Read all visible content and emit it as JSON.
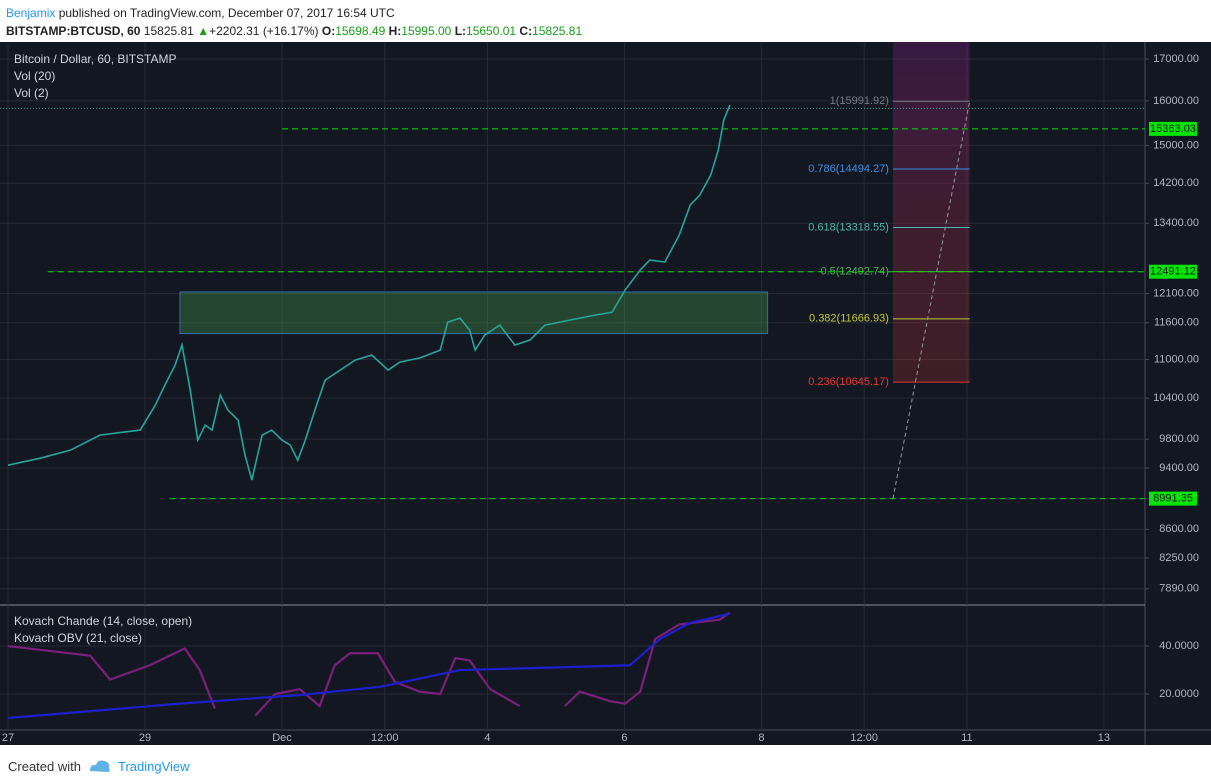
{
  "header": {
    "author": "Benjamix",
    "published": "published on TradingView.com, December 07, 2017 16:54 UTC",
    "symbol": "BITSTAMP:BTCUSD, 60",
    "price": "15825.81",
    "arrow": "▲",
    "change": "+2202.31 (+16.17%)",
    "o_label": "O:",
    "open": "15698.49",
    "h_label": "H:",
    "high": "15995.00",
    "l_label": "L:",
    "low": "15650.01",
    "c_label": "C:",
    "close": 15825.81
  },
  "chart_data": [
    {
      "type": "line",
      "title": "Bitcoin / Dollar, 60, BITSTAMP",
      "studies": [
        "Vol (20)",
        "Vol (2)"
      ],
      "x": [
        0,
        0.47,
        0.91,
        1.34,
        1.93,
        2.15,
        2.29,
        2.44,
        2.54,
        2.66,
        2.77,
        2.88,
        2.98,
        3.1,
        3.21,
        3.36,
        3.46,
        3.56,
        3.71,
        3.85,
        4,
        4.12,
        4.23,
        4.34,
        4.48,
        4.63,
        4.85,
        5.07,
        5.31,
        5.55,
        5.72,
        6.01,
        6.31,
        6.42,
        6.6,
        6.74,
        6.82,
        6.96,
        7.18,
        7.4,
        7.62,
        7.84,
        8.2,
        8.57,
        8.82,
        9.01,
        9.23,
        9.37,
        9.59,
        9.8,
        9.96,
        10.1,
        10.26,
        10.37,
        10.45,
        10.54
      ],
      "values": [
        9438,
        9534,
        9645,
        9858,
        9930,
        10295,
        10598,
        10911,
        11232,
        10523,
        9787,
        10003,
        9930,
        10447,
        10222,
        10074,
        9576,
        9236,
        9858,
        9930,
        9787,
        9717,
        9506,
        9787,
        10222,
        10676,
        10832,
        10990,
        11070,
        10832,
        10958,
        11023,
        11150,
        11611,
        11679,
        11478,
        11150,
        11395,
        11562,
        11232,
        11314,
        11562,
        11645,
        11730,
        11781,
        12164,
        12521,
        12704,
        12667,
        13172,
        13758,
        13959,
        14370,
        14899,
        15562,
        15904
      ],
      "color": "#26a69a",
      "log_scale": true,
      "grid": true,
      "xlim": [
        -0.117,
        16.6
      ],
      "xticks": [
        {
          "value": 0,
          "label": "27"
        },
        {
          "value": 2,
          "label": "29"
        },
        {
          "value": 4,
          "label": "Dec"
        },
        {
          "value": 5.5,
          "label": "12:00"
        },
        {
          "value": 7,
          "label": "4"
        },
        {
          "value": 9,
          "label": "6"
        },
        {
          "value": 11,
          "label": "8"
        },
        {
          "value": 12.5,
          "label": "12:00"
        },
        {
          "value": 14,
          "label": "11"
        },
        {
          "value": 16,
          "label": "13"
        }
      ],
      "ylim": [
        7707,
        17424
      ],
      "yticks": [
        {
          "value": 17000,
          "label": "17000.00"
        },
        {
          "value": 16000,
          "label": "16000.00"
        },
        {
          "value": 15000,
          "label": "15000.00"
        },
        {
          "value": 14200,
          "label": "14200.00"
        },
        {
          "value": 13400,
          "label": "13400.00"
        },
        {
          "value": 12100,
          "label": "12100.00"
        },
        {
          "value": 11600,
          "label": "11600.00"
        },
        {
          "value": 11000,
          "label": "11000.00"
        },
        {
          "value": 10400,
          "label": "10400.00"
        },
        {
          "value": 9800,
          "label": "9800.00"
        },
        {
          "value": 9400,
          "label": "9400.00"
        },
        {
          "value": 8600,
          "label": "8600.00"
        },
        {
          "value": 8250,
          "label": "8250.00"
        },
        {
          "value": 7890,
          "label": "7890.00"
        }
      ],
      "levels": [
        {
          "value": 15363.03,
          "start": 4
        },
        {
          "value": 12491.12,
          "start": 0.58
        },
        {
          "value": 8991.35,
          "start": 2.36
        }
      ],
      "level_color": "#00e600",
      "zone": {
        "top": 12130,
        "bottom": 11420,
        "x": [
          2.51,
          11.09
        ],
        "color": "#4caf50"
      },
      "fib_range": [
        12.92,
        14.04
      ],
      "fib_levels": [
        {
          "value": 15991.92,
          "label": "1(15991.92)",
          "color": "#787b86"
        },
        {
          "value": 14494.27,
          "label": "0.786(14494.27)",
          "color": "#3d8fe0"
        },
        {
          "value": 13318.55,
          "label": "0.618(13318.55)",
          "color": "#4db6ac"
        },
        {
          "value": 12492.74,
          "label": "0.5(12492.74)",
          "color": "#4caf50"
        },
        {
          "value": 11666.93,
          "label": "0.382(11666.93)",
          "color": "#c0ca33"
        },
        {
          "value": 10645.17,
          "label": "0.236(10645.17)",
          "color": "#e53935"
        }
      ]
    },
    {
      "type": "line",
      "ylim": [
        5,
        56.7
      ],
      "yticks": [
        {
          "value": 20,
          "label": "20.0000"
        },
        {
          "value": 40,
          "label": "40.0000"
        }
      ],
      "series": [
        {
          "name": "Kovach Chande (14, close, open)",
          "color": "#7b1f7b",
          "x": [
            0,
            1.2,
            1.49,
            2.07,
            2.58,
            2.8,
            3.02,
            3.21,
            3.61,
            3.9,
            4.26,
            4.55,
            4.77,
            4.99,
            5.4,
            5.65,
            6.01,
            6.31,
            6.53,
            6.74,
            7.04,
            7.47,
            7.62,
            8.13,
            8.35,
            8.79,
            9.01,
            9.23,
            9.45,
            9.8,
            10.39,
            10.54
          ],
          "values": [
            40,
            36,
            26,
            32,
            39,
            30,
            14,
            null,
            11,
            20,
            22,
            15,
            32,
            37,
            37,
            25,
            21,
            20,
            35,
            34,
            22,
            15,
            null,
            15,
            21,
            17,
            16,
            21,
            43,
            49,
            51,
            54
          ]
        },
        {
          "name": "Kovach OBV (21, close)",
          "color": "#1e1ecc",
          "x": [
            0,
            2.51,
            4.26,
            5.43,
            6.6,
            7.91,
            9.08,
            9.52,
            9.96,
            10.54
          ],
          "values": [
            10,
            16,
            19.6,
            23,
            30,
            31,
            32,
            43,
            49.7,
            53.5
          ]
        }
      ]
    }
  ],
  "footer": {
    "created": "Created with",
    "brand": "TradingView"
  }
}
